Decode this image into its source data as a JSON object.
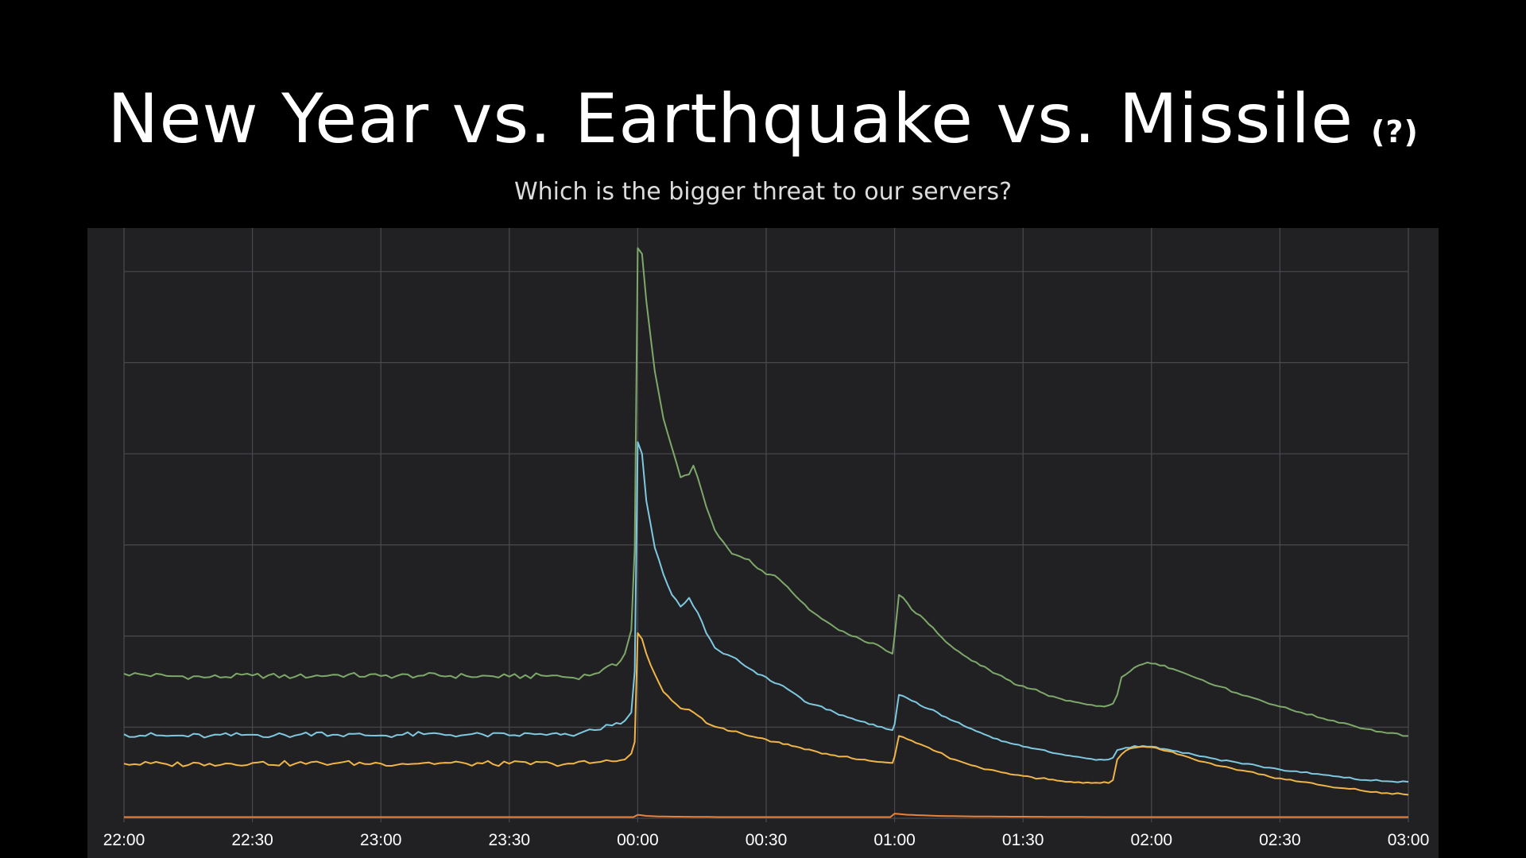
{
  "title": "New Year vs. Earthquake vs. Missile",
  "title_note": "(?)",
  "subtitle": "Which is the bigger threat to our servers?",
  "colors": {
    "background": "#000000",
    "plot_background": "#212124",
    "grid": "#4a4a4e",
    "green": "#7ea86a",
    "blue": "#7ec8e0",
    "yellow": "#f0b548",
    "orange": "#e8823a"
  },
  "chart_data": {
    "type": "line",
    "xlabel": "",
    "ylabel": "",
    "x_ticks": [
      "22:00",
      "22:30",
      "23:00",
      "23:30",
      "00:00",
      "00:30",
      "01:00",
      "01:30",
      "02:00",
      "02:30",
      "03:00"
    ],
    "xlim": [
      0,
      300
    ],
    "ylim": [
      0,
      100
    ],
    "y_gridlines": [
      0,
      15.5,
      31,
      46.5,
      62,
      77.5,
      93
    ],
    "grid": true,
    "legend": "none",
    "x_unit": "minutes after 22:00",
    "series": [
      {
        "color": "green",
        "points": [
          [
            0,
            24.6
          ],
          [
            10,
            24.2
          ],
          [
            20,
            24.0
          ],
          [
            30,
            24.3
          ],
          [
            40,
            24.1
          ],
          [
            50,
            24.4
          ],
          [
            60,
            24.2
          ],
          [
            70,
            24.3
          ],
          [
            80,
            24.2
          ],
          [
            90,
            24.1
          ],
          [
            100,
            24.3
          ],
          [
            105,
            23.9
          ],
          [
            110,
            24.6
          ],
          [
            112,
            25.4
          ],
          [
            115,
            26.0
          ],
          [
            117,
            28.0
          ],
          [
            118.5,
            32.0
          ],
          [
            119.3,
            46.0
          ],
          [
            120,
            97.0
          ],
          [
            121,
            96.0
          ],
          [
            122,
            88.0
          ],
          [
            124,
            76.0
          ],
          [
            126,
            68.0
          ],
          [
            128,
            63.0
          ],
          [
            130,
            58.0
          ],
          [
            132,
            58.5
          ],
          [
            133,
            60.0
          ],
          [
            134,
            58.0
          ],
          [
            136,
            53.0
          ],
          [
            138,
            49.0
          ],
          [
            140,
            47.0
          ],
          [
            142,
            45.0
          ],
          [
            144,
            44.5
          ],
          [
            146,
            44.0
          ],
          [
            148,
            42.5
          ],
          [
            150,
            41.5
          ],
          [
            152,
            41.3
          ],
          [
            154,
            40.0
          ],
          [
            156,
            38.5
          ],
          [
            158,
            37.0
          ],
          [
            160,
            35.5
          ],
          [
            162,
            34.5
          ],
          [
            164,
            33.5
          ],
          [
            166,
            32.5
          ],
          [
            168,
            31.8
          ],
          [
            170,
            31.0
          ],
          [
            172,
            30.5
          ],
          [
            174,
            29.8
          ],
          [
            176,
            29.5
          ],
          [
            178,
            28.5
          ],
          [
            179.5,
            28.0
          ],
          [
            180,
            31.0
          ],
          [
            181,
            38.0
          ],
          [
            182,
            37.5
          ],
          [
            184,
            35.5
          ],
          [
            186,
            34.5
          ],
          [
            188,
            33.0
          ],
          [
            190,
            31.5
          ],
          [
            192,
            30.0
          ],
          [
            194,
            28.8
          ],
          [
            196,
            27.8
          ],
          [
            198,
            26.8
          ],
          [
            200,
            26.0
          ],
          [
            202,
            25.3
          ],
          [
            204,
            24.5
          ],
          [
            206,
            23.7
          ],
          [
            208,
            22.8
          ],
          [
            210,
            22.5
          ],
          [
            212,
            22.0
          ],
          [
            214,
            21.5
          ],
          [
            216,
            20.8
          ],
          [
            218,
            20.5
          ],
          [
            220,
            20.0
          ],
          [
            222,
            19.8
          ],
          [
            224,
            19.5
          ],
          [
            226,
            19.3
          ],
          [
            228,
            19.1
          ],
          [
            230,
            19.2
          ],
          [
            231,
            19.5
          ],
          [
            232,
            21.0
          ],
          [
            233,
            24.0
          ],
          [
            235,
            25.0
          ],
          [
            237,
            26.0
          ],
          [
            239,
            26.5
          ],
          [
            241,
            26.3
          ],
          [
            243,
            26.0
          ],
          [
            245,
            25.4
          ],
          [
            248,
            24.6
          ],
          [
            252,
            23.5
          ],
          [
            256,
            22.4
          ],
          [
            260,
            21.3
          ],
          [
            265,
            20.2
          ],
          [
            270,
            19.0
          ],
          [
            275,
            18.0
          ],
          [
            280,
            17.0
          ],
          [
            285,
            16.2
          ],
          [
            290,
            15.2
          ],
          [
            295,
            14.5
          ],
          [
            300,
            14.0
          ]
        ]
      },
      {
        "color": "blue",
        "points": [
          [
            0,
            14.3
          ],
          [
            10,
            14.0
          ],
          [
            20,
            14.0
          ],
          [
            30,
            14.2
          ],
          [
            40,
            14.1
          ],
          [
            45,
            14.6
          ],
          [
            50,
            14.2
          ],
          [
            60,
            14.1
          ],
          [
            70,
            14.3
          ],
          [
            80,
            14.2
          ],
          [
            90,
            14.1
          ],
          [
            96,
            14.3
          ],
          [
            100,
            14.4
          ],
          [
            102,
            14.2
          ],
          [
            105,
            14.0
          ],
          [
            110,
            15.0
          ],
          [
            114,
            15.8
          ],
          [
            117,
            16.6
          ],
          [
            118.5,
            18.0
          ],
          [
            119.3,
            25.0
          ],
          [
            120,
            64.0
          ],
          [
            121,
            62.0
          ],
          [
            122,
            54.0
          ],
          [
            124,
            46.0
          ],
          [
            126,
            41.5
          ],
          [
            128,
            38.0
          ],
          [
            130,
            36.0
          ],
          [
            132,
            37.5
          ],
          [
            134,
            35.0
          ],
          [
            136,
            31.5
          ],
          [
            138,
            29.0
          ],
          [
            140,
            28.0
          ],
          [
            142,
            27.5
          ],
          [
            144,
            26.5
          ],
          [
            146,
            25.5
          ],
          [
            148,
            24.5
          ],
          [
            150,
            24.0
          ],
          [
            152,
            23.0
          ],
          [
            154,
            22.5
          ],
          [
            156,
            21.5
          ],
          [
            158,
            20.5
          ],
          [
            160,
            19.5
          ],
          [
            162,
            19.2
          ],
          [
            164,
            18.5
          ],
          [
            166,
            18.0
          ],
          [
            168,
            17.5
          ],
          [
            170,
            17.0
          ],
          [
            172,
            16.5
          ],
          [
            174,
            16.0
          ],
          [
            176,
            15.6
          ],
          [
            178,
            15.2
          ],
          [
            179.5,
            15.0
          ],
          [
            180,
            16.0
          ],
          [
            181,
            21.0
          ],
          [
            182,
            20.8
          ],
          [
            184,
            20.0
          ],
          [
            186,
            19.2
          ],
          [
            188,
            18.6
          ],
          [
            190,
            18.0
          ],
          [
            192,
            17.2
          ],
          [
            194,
            16.5
          ],
          [
            196,
            15.8
          ],
          [
            198,
            15.2
          ],
          [
            200,
            14.6
          ],
          [
            202,
            14.0
          ],
          [
            204,
            13.5
          ],
          [
            206,
            13.0
          ],
          [
            208,
            12.6
          ],
          [
            210,
            12.2
          ],
          [
            212,
            11.9
          ],
          [
            214,
            11.7
          ],
          [
            216,
            11.3
          ],
          [
            218,
            11.0
          ],
          [
            220,
            10.7
          ],
          [
            222,
            10.5
          ],
          [
            224,
            10.3
          ],
          [
            226,
            10.1
          ],
          [
            228,
            10.0
          ],
          [
            230,
            10.0
          ],
          [
            231,
            10.3
          ],
          [
            232,
            11.6
          ],
          [
            234,
            12.0
          ],
          [
            236,
            12.3
          ],
          [
            238,
            12.3
          ],
          [
            240,
            12.2
          ],
          [
            243,
            11.8
          ],
          [
            246,
            11.4
          ],
          [
            250,
            10.8
          ],
          [
            255,
            10.1
          ],
          [
            260,
            9.5
          ],
          [
            265,
            8.9
          ],
          [
            270,
            8.3
          ],
          [
            275,
            7.8
          ],
          [
            280,
            7.4
          ],
          [
            285,
            6.9
          ],
          [
            290,
            6.5
          ],
          [
            295,
            6.3
          ],
          [
            300,
            6.2
          ]
        ]
      },
      {
        "color": "yellow",
        "points": [
          [
            0,
            9.3
          ],
          [
            10,
            9.2
          ],
          [
            20,
            9.3
          ],
          [
            30,
            9.4
          ],
          [
            40,
            9.3
          ],
          [
            50,
            9.4
          ],
          [
            60,
            9.3
          ],
          [
            70,
            9.4
          ],
          [
            80,
            9.3
          ],
          [
            90,
            9.3
          ],
          [
            100,
            9.3
          ],
          [
            105,
            9.3
          ],
          [
            110,
            9.5
          ],
          [
            114,
            9.7
          ],
          [
            117,
            10.0
          ],
          [
            118.5,
            11.0
          ],
          [
            119.3,
            13.0
          ],
          [
            120,
            31.5
          ],
          [
            121,
            30.5
          ],
          [
            122,
            28.0
          ],
          [
            124,
            24.5
          ],
          [
            126,
            21.5
          ],
          [
            128,
            20.0
          ],
          [
            130,
            18.7
          ],
          [
            132,
            18.5
          ],
          [
            134,
            17.5
          ],
          [
            136,
            16.2
          ],
          [
            138,
            15.6
          ],
          [
            140,
            15.3
          ],
          [
            142,
            14.8
          ],
          [
            144,
            14.5
          ],
          [
            146,
            14.0
          ],
          [
            148,
            13.7
          ],
          [
            150,
            13.4
          ],
          [
            152,
            13.0
          ],
          [
            154,
            12.6
          ],
          [
            156,
            12.3
          ],
          [
            158,
            12.0
          ],
          [
            160,
            11.7
          ],
          [
            162,
            11.3
          ],
          [
            164,
            11.0
          ],
          [
            166,
            10.7
          ],
          [
            168,
            10.5
          ],
          [
            170,
            10.2
          ],
          [
            172,
            10.0
          ],
          [
            174,
            9.8
          ],
          [
            176,
            9.6
          ],
          [
            178,
            9.5
          ],
          [
            179.5,
            9.4
          ],
          [
            180,
            10.5
          ],
          [
            181,
            14.0
          ],
          [
            182,
            13.8
          ],
          [
            184,
            13.2
          ],
          [
            186,
            12.6
          ],
          [
            188,
            12.0
          ],
          [
            190,
            11.3
          ],
          [
            192,
            10.6
          ],
          [
            194,
            10.0
          ],
          [
            196,
            9.5
          ],
          [
            198,
            9.0
          ],
          [
            200,
            8.6
          ],
          [
            202,
            8.3
          ],
          [
            204,
            8.0
          ],
          [
            206,
            7.7
          ],
          [
            208,
            7.4
          ],
          [
            210,
            7.2
          ],
          [
            212,
            7.0
          ],
          [
            214,
            6.8
          ],
          [
            216,
            6.6
          ],
          [
            218,
            6.4
          ],
          [
            220,
            6.2
          ],
          [
            222,
            6.1
          ],
          [
            224,
            6.0
          ],
          [
            226,
            6.0
          ],
          [
            228,
            6.0
          ],
          [
            230,
            6.0
          ],
          [
            231,
            6.5
          ],
          [
            232,
            10.0
          ],
          [
            234,
            11.5
          ],
          [
            236,
            12.0
          ],
          [
            238,
            12.2
          ],
          [
            240,
            12.1
          ],
          [
            243,
            11.5
          ],
          [
            246,
            10.9
          ],
          [
            250,
            10.0
          ],
          [
            255,
            9.0
          ],
          [
            260,
            8.2
          ],
          [
            265,
            7.5
          ],
          [
            270,
            6.8
          ],
          [
            275,
            6.2
          ],
          [
            280,
            5.6
          ],
          [
            285,
            5.1
          ],
          [
            290,
            4.6
          ],
          [
            295,
            4.3
          ],
          [
            300,
            4.0
          ]
        ]
      },
      {
        "color": "orange",
        "points": [
          [
            0,
            0.2
          ],
          [
            60,
            0.2
          ],
          [
            119,
            0.2
          ],
          [
            120,
            0.6
          ],
          [
            122,
            0.4
          ],
          [
            125,
            0.3
          ],
          [
            140,
            0.2
          ],
          [
            179,
            0.2
          ],
          [
            180,
            0.8
          ],
          [
            183,
            0.6
          ],
          [
            190,
            0.4
          ],
          [
            200,
            0.3
          ],
          [
            231,
            0.2
          ],
          [
            300,
            0.2
          ]
        ]
      }
    ]
  }
}
